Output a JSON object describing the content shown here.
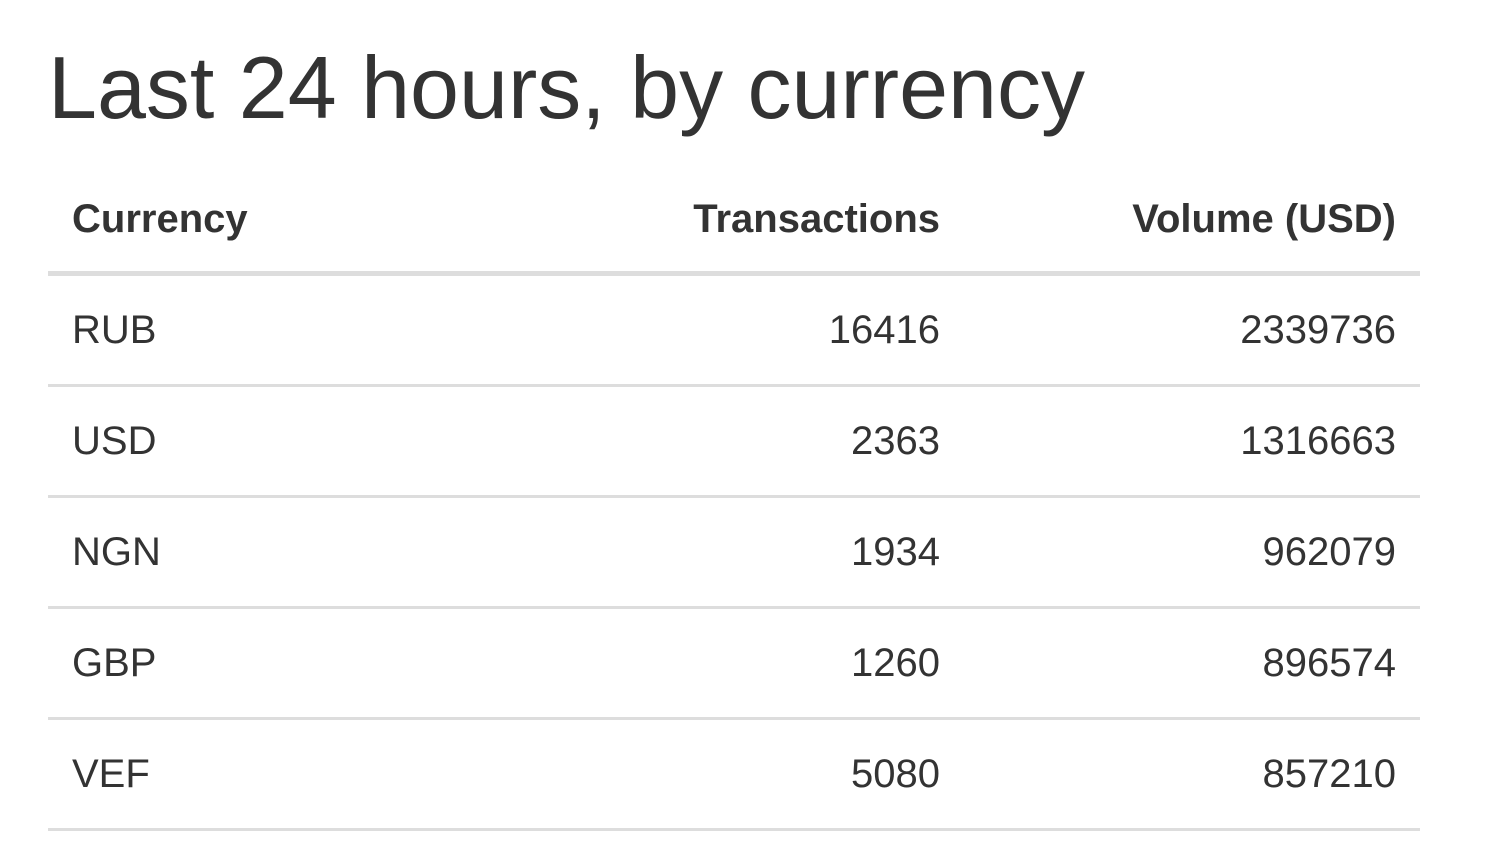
{
  "page": {
    "title": "Last 24 hours, by currency"
  },
  "table": {
    "headers": {
      "currency": "Currency",
      "transactions": "Transactions",
      "volume": "Volume (USD)"
    },
    "rows": [
      {
        "currency": "RUB",
        "transactions": "16416",
        "volume": "2339736"
      },
      {
        "currency": "USD",
        "transactions": "2363",
        "volume": "1316663"
      },
      {
        "currency": "NGN",
        "transactions": "1934",
        "volume": "962079"
      },
      {
        "currency": "GBP",
        "transactions": "1260",
        "volume": "896574"
      },
      {
        "currency": "VEF",
        "transactions": "5080",
        "volume": "857210"
      }
    ]
  }
}
